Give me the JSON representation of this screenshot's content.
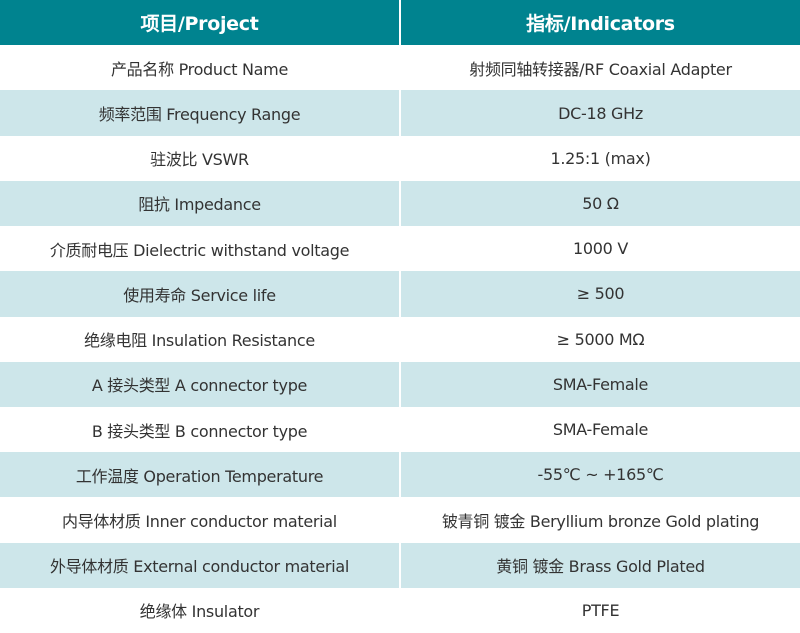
{
  "colors": {
    "header_bg": "#00838f",
    "alt_row_bg": "#cde6ea",
    "row_bg": "#ffffff"
  },
  "header": {
    "col1": "项目/Project",
    "col2": "指标/Indicators"
  },
  "rows": [
    {
      "project": "产品名称 Product Name",
      "indicator": "射频同轴转接器/RF Coaxial Adapter"
    },
    {
      "project": "频率范围 Frequency Range",
      "indicator": "DC-18 GHz"
    },
    {
      "project": "驻波比 VSWR",
      "indicator": "1.25:1 (max)"
    },
    {
      "project": "阻抗 Impedance",
      "indicator": "50 Ω"
    },
    {
      "project": "介质耐电压 Dielectric withstand voltage",
      "indicator": "1000 V"
    },
    {
      "project": "使用寿命 Service life",
      "indicator": "≥ 500"
    },
    {
      "project": "绝缘电阻 Insulation Resistance",
      "indicator": "≥ 5000 MΩ"
    },
    {
      "project": "A 接头类型  A connector type",
      "indicator": "SMA-Female"
    },
    {
      "project": "B 接头类型  B connector type",
      "indicator": "SMA-Female"
    },
    {
      "project": "工作温度 Operation Temperature",
      "indicator": "-55℃ ~ +165℃"
    },
    {
      "project": "内导体材质 Inner conductor material",
      "indicator": "铍青铜 镀金 Beryllium bronze Gold plating"
    },
    {
      "project": "外导体材质 External conductor material",
      "indicator": "黄铜 镀金 Brass Gold Plated"
    },
    {
      "project": "绝缘体 Insulator",
      "indicator": "PTFE"
    }
  ]
}
